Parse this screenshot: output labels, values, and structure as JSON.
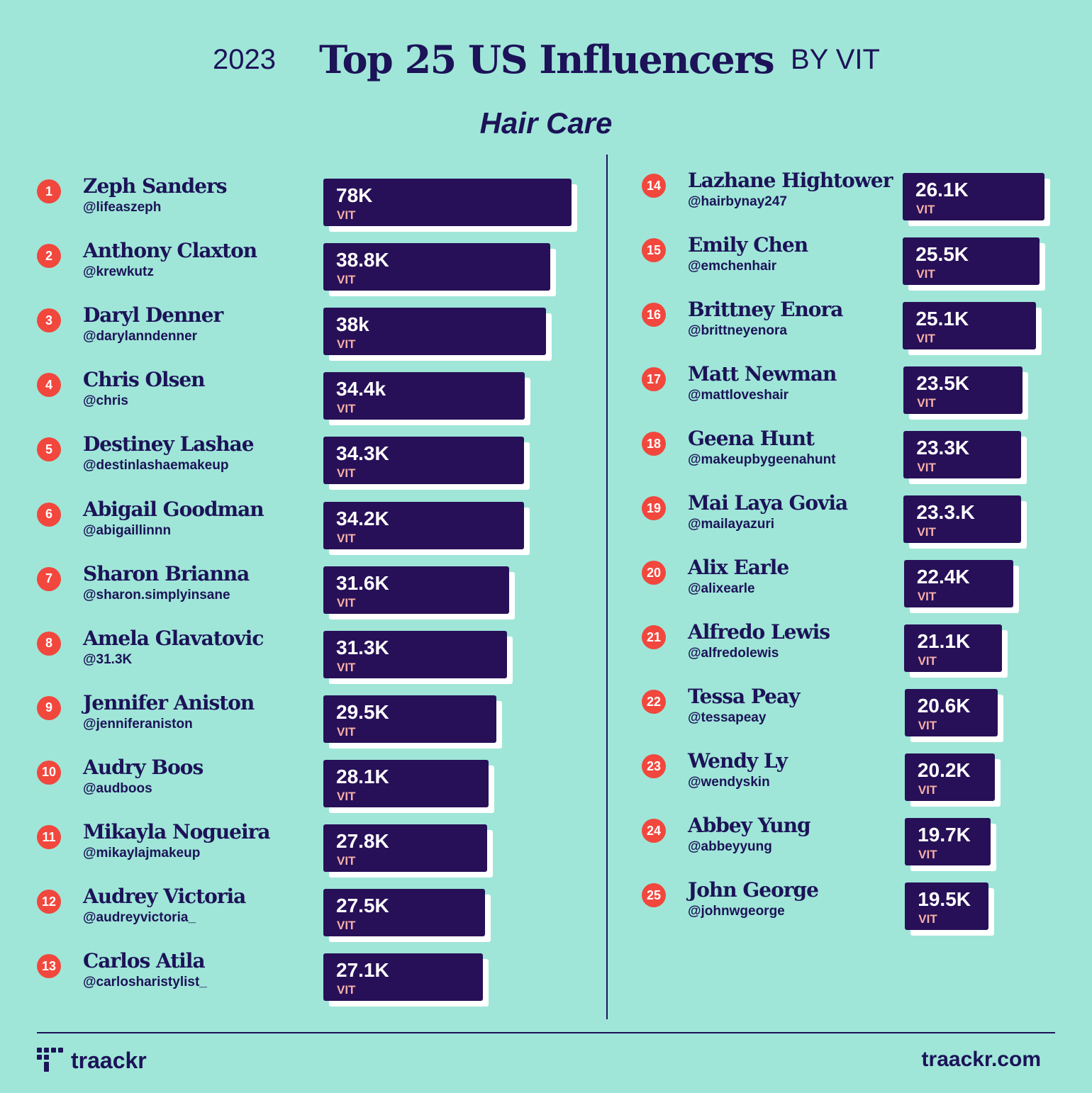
{
  "header": {
    "year": "2023",
    "title": "Top 25 US Influencers",
    "byline": "BY VIT",
    "subtitle": "Hair Care"
  },
  "footer": {
    "logo_text": "traackr",
    "site": "traackr.com"
  },
  "colors": {
    "background": "#9fe6d8",
    "navy": "#1c1358",
    "bar": "#271058",
    "rank_badge": "#f2473d",
    "unit_text": "#f7b0a8"
  },
  "chart_data": {
    "type": "bar",
    "title": "Top 25 US Influencers",
    "subtitle": "Hair Care",
    "metric": "VIT",
    "unit_label": "VIT",
    "influencers": [
      {
        "rank": "1",
        "name": "Zeph Sanders",
        "handle": "@lifeaszeph",
        "value": 78000,
        "label": "78K"
      },
      {
        "rank": "2",
        "name": "Anthony Claxton",
        "handle": "@krewkutz",
        "value": 38800,
        "label": "38.8K"
      },
      {
        "rank": "3",
        "name": "Daryl Denner",
        "handle": "@darylanndenner",
        "value": 38000,
        "label": "38k"
      },
      {
        "rank": "4",
        "name": "Chris Olsen",
        "handle": "@chris",
        "value": 34400,
        "label": "34.4k"
      },
      {
        "rank": "5",
        "name": "Destiney Lashae",
        "handle": "@destinlashaemakeup",
        "value": 34300,
        "label": "34.3K"
      },
      {
        "rank": "6",
        "name": "Abigail Goodman",
        "handle": "@abigaillinnn",
        "value": 34200,
        "label": "34.2K"
      },
      {
        "rank": "7",
        "name": "Sharon Brianna",
        "handle": "@sharon.simplyinsane",
        "value": 31600,
        "label": "31.6K"
      },
      {
        "rank": "8",
        "name": "Amela Glavatovic",
        "handle": "@31.3K",
        "value": 31300,
        "label": "31.3K"
      },
      {
        "rank": "9",
        "name": "Jennifer Aniston",
        "handle": "@jenniferaniston",
        "value": 29500,
        "label": "29.5K"
      },
      {
        "rank": "10",
        "name": "Audry Boos",
        "handle": "@audboos",
        "value": 28100,
        "label": "28.1K"
      },
      {
        "rank": "11",
        "name": "Mikayla Nogueira",
        "handle": "@mikaylajmakeup",
        "value": 27800,
        "label": "27.8K"
      },
      {
        "rank": "12",
        "name": "Audrey Victoria",
        "handle": "@audreyvictoria_",
        "value": 27500,
        "label": "27.5K"
      },
      {
        "rank": "13",
        "name": "Carlos Atila",
        "handle": "@carlosharistylist_",
        "value": 27100,
        "label": "27.1K"
      },
      {
        "rank": "14",
        "name": "Lazhane Hightower",
        "handle": "@hairbynay247",
        "value": 26100,
        "label": "26.1K"
      },
      {
        "rank": "15",
        "name": "Emily Chen",
        "handle": "@emchenhair",
        "value": 25500,
        "label": "25.5K"
      },
      {
        "rank": "16",
        "name": "Brittney Enora",
        "handle": "@brittneyenora",
        "value": 25100,
        "label": "25.1K"
      },
      {
        "rank": "17",
        "name": "Matt Newman",
        "handle": "@mattloveshair",
        "value": 23500,
        "label": "23.5K"
      },
      {
        "rank": "18",
        "name": "Geena Hunt",
        "handle": "@makeupbygeenahunt",
        "value": 23300,
        "label": "23.3K"
      },
      {
        "rank": "19",
        "name": "Mai Laya Govia",
        "handle": "@mailayazuri",
        "value": 23300,
        "label": "23.3.K"
      },
      {
        "rank": "20",
        "name": "Alix Earle",
        "handle": "@alixearle",
        "value": 22400,
        "label": "22.4K"
      },
      {
        "rank": "21",
        "name": "Alfredo Lewis",
        "handle": "@alfredolewis",
        "value": 21100,
        "label": "21.1K"
      },
      {
        "rank": "22",
        "name": "Tessa Peay",
        "handle": "@tessapeay",
        "value": 20600,
        "label": "20.6K"
      },
      {
        "rank": "23",
        "name": "Wendy Ly",
        "handle": "@wendyskin",
        "value": 20200,
        "label": "20.2K"
      },
      {
        "rank": "24",
        "name": "Abbey Yung",
        "handle": "@abbeyyung",
        "value": 19700,
        "label": "19.7K"
      },
      {
        "rank": "25",
        "name": "John George",
        "handle": "@johnwgeorge",
        "value": 19500,
        "label": "19.5K"
      }
    ]
  }
}
